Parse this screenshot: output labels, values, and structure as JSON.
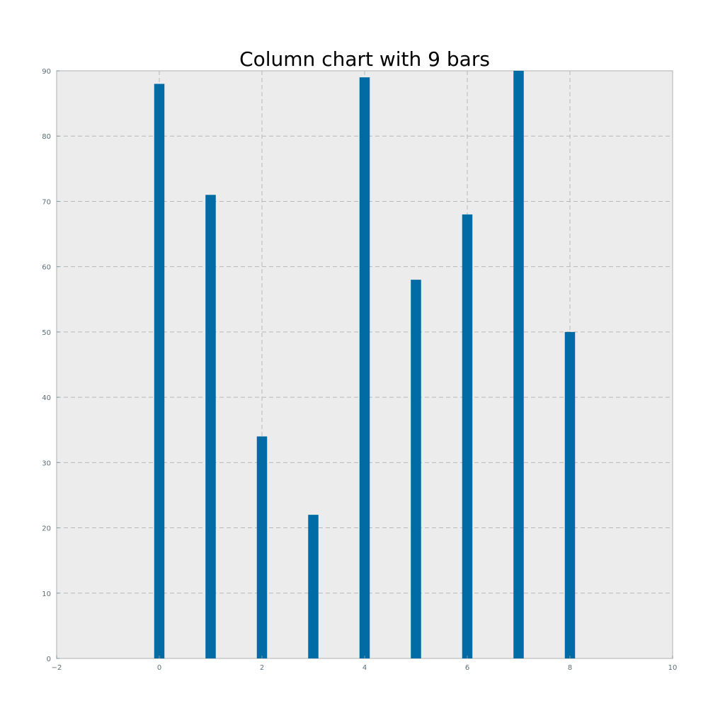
{
  "chart_data": {
    "type": "bar",
    "title": "Column chart with 9 bars",
    "xlabel": "",
    "ylabel": "",
    "x": [
      0,
      1,
      2,
      3,
      4,
      5,
      6,
      7,
      8
    ],
    "values": [
      88,
      71,
      34,
      22,
      89,
      58,
      68,
      90,
      50
    ],
    "xlim": [
      -2,
      10
    ],
    "ylim": [
      0,
      90
    ],
    "x_ticks": [
      "−2",
      "0",
      "2",
      "4",
      "6",
      "8",
      "10"
    ],
    "x_tick_values": [
      -2,
      0,
      2,
      4,
      6,
      8,
      10
    ],
    "y_ticks": [
      "0",
      "10",
      "20",
      "30",
      "40",
      "50",
      "60",
      "70",
      "80",
      "90"
    ],
    "y_tick_values": [
      0,
      10,
      20,
      30,
      40,
      50,
      60,
      70,
      80,
      90
    ],
    "grid": true,
    "legend": "none",
    "colors": {
      "bar": "#006ba4",
      "plot_background": "#ececec",
      "grid": "#b8b8b8"
    }
  }
}
